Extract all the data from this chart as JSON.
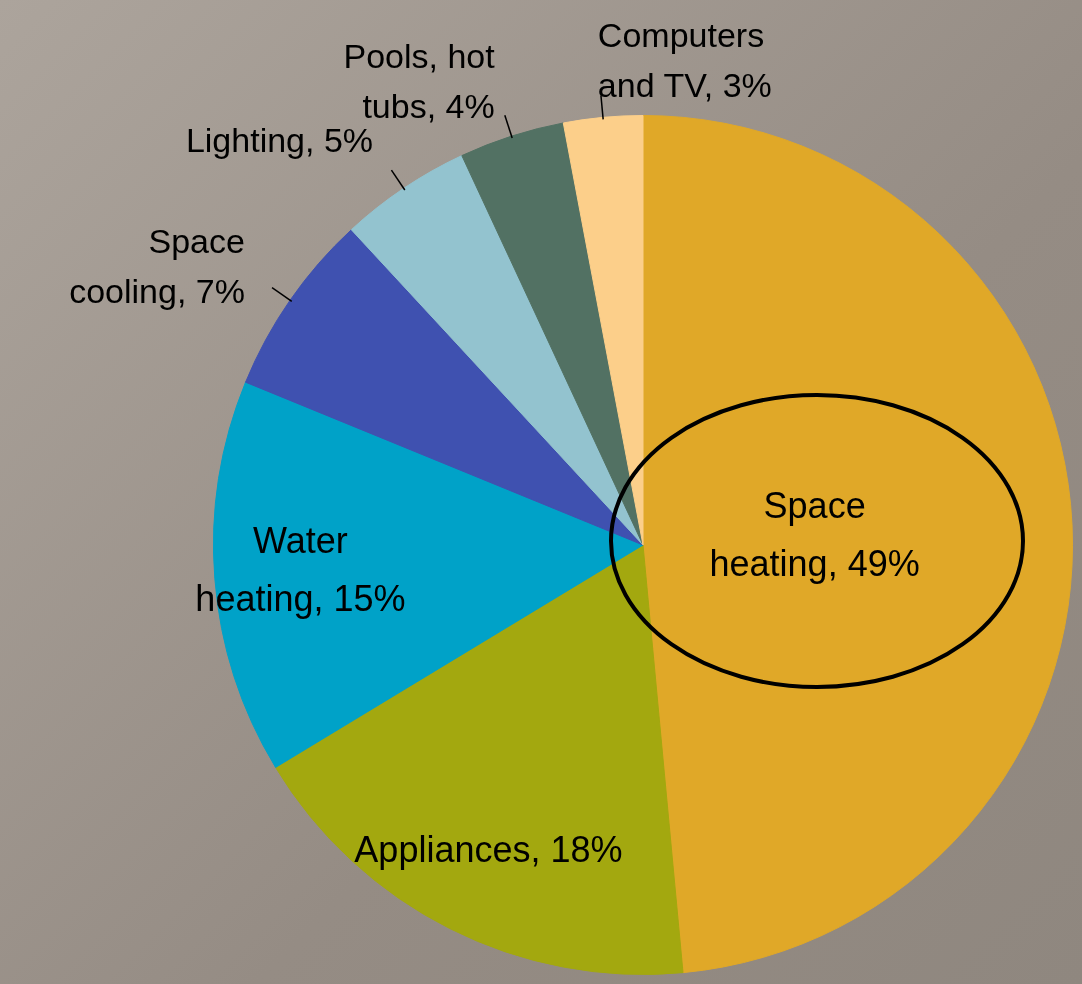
{
  "chart_data": {
    "type": "pie",
    "categories": [
      "Space heating",
      "Appliances",
      "Water heating",
      "Space cooling",
      "Lighting",
      "Pools, hot tubs",
      "Computers and TV"
    ],
    "values": [
      49,
      18,
      15,
      7,
      5,
      4,
      3
    ],
    "value_labels": [
      "49%",
      "18%",
      "15%",
      "7%",
      "5%",
      "4%",
      "3%"
    ],
    "colors": [
      "#e0a828",
      "#a3a80f",
      "#00a2c8",
      "#3f51b0",
      "#93c3cf",
      "#527163",
      "#fccf8a"
    ],
    "legend": false
  }
}
